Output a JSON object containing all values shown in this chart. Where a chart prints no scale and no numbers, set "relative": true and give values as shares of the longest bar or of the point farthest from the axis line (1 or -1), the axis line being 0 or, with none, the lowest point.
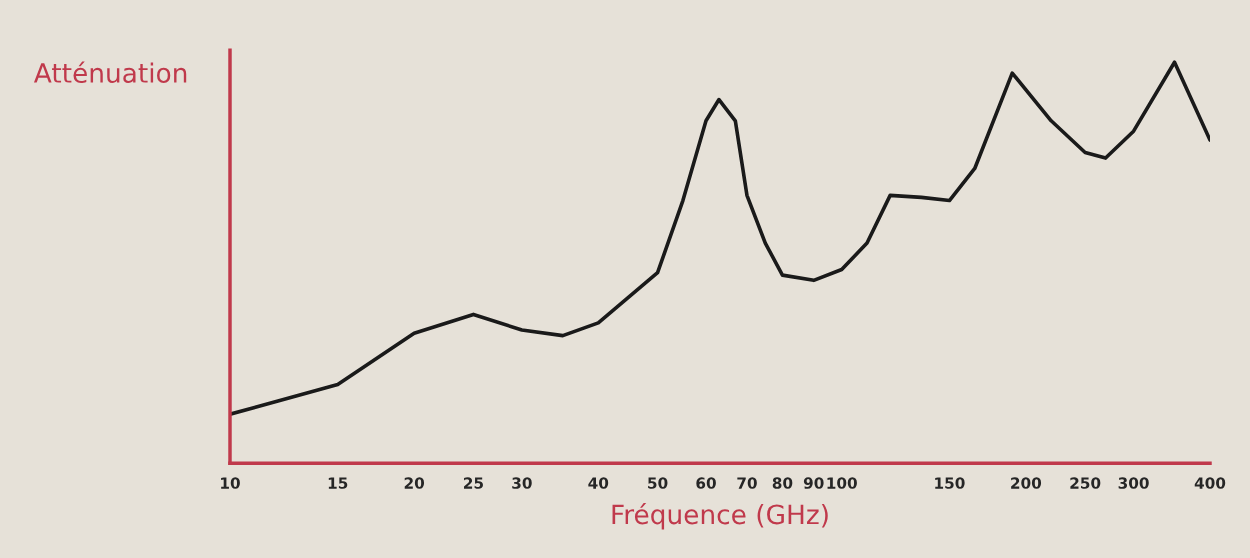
{
  "chart_data": {
    "type": "line",
    "xlabel": "Fréquence (GHz)",
    "ylabel": "Atténuation",
    "relative": true,
    "log": "x",
    "tick_labels": "x",
    "marker": "none",
    "line_style": "solid",
    "xlim": [
      10,
      400
    ],
    "xticks": [
      10,
      15,
      20,
      25,
      30,
      40,
      50,
      60,
      70,
      80,
      90,
      100,
      150,
      200,
      250,
      300,
      400
    ],
    "x": [
      10,
      15,
      20,
      25,
      30,
      35,
      40,
      50,
      55,
      60,
      63,
      67,
      70,
      75,
      80,
      90,
      100,
      110,
      120,
      135,
      150,
      165,
      190,
      220,
      250,
      270,
      300,
      350,
      400
    ],
    "series": [
      {
        "color": "#1a1a1a",
        "values": [
          0.122,
          0.196,
          0.324,
          0.371,
          0.332,
          0.318,
          0.35,
          0.475,
          0.655,
          0.854,
          0.907,
          0.854,
          0.668,
          0.549,
          0.469,
          0.456,
          0.483,
          0.549,
          0.668,
          0.663,
          0.655,
          0.735,
          0.973,
          0.854,
          0.775,
          0.761,
          0.828,
          1.0,
          0.806
        ]
      }
    ]
  }
}
